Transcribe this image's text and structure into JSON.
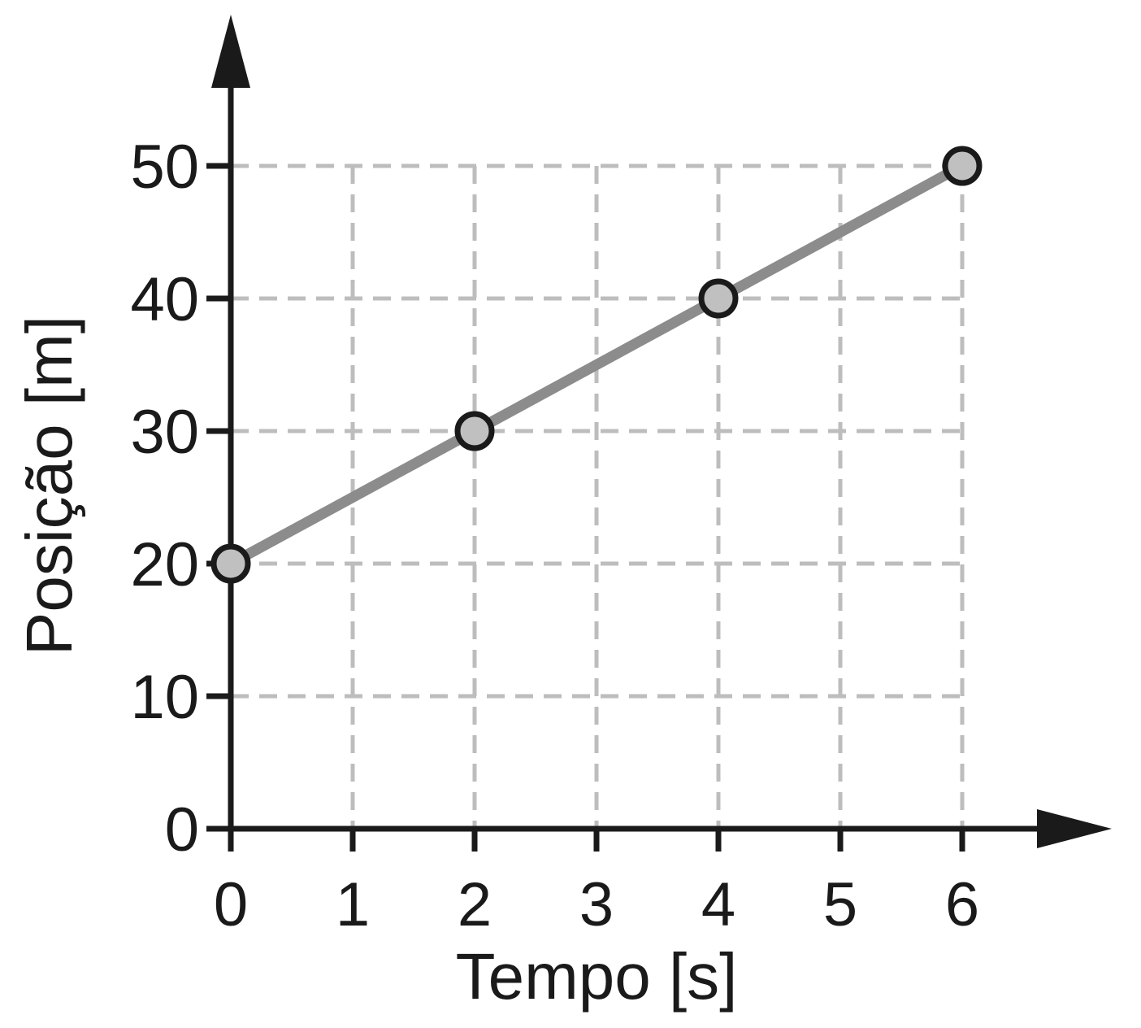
{
  "chart_data": {
    "type": "line",
    "title": "",
    "xlabel": "Tempo [s]",
    "ylabel": "Posição [m]",
    "x": [
      0,
      2,
      4,
      6
    ],
    "series": [
      {
        "values": [
          20,
          30,
          40,
          50
        ]
      }
    ],
    "xlim": [
      0,
      6
    ],
    "ylim": [
      0,
      50
    ],
    "xticks": [
      0,
      1,
      2,
      3,
      4,
      5,
      6
    ],
    "yticks": [
      0,
      10,
      20,
      30,
      40,
      50
    ],
    "grid": true,
    "legend": "none",
    "colors": {
      "axis": "#1a1a1a",
      "grid": "#bdbdbd",
      "line": "#8c8c8c",
      "marker_fill": "#c0c0c0",
      "marker_stroke": "#1a1a1a"
    }
  }
}
